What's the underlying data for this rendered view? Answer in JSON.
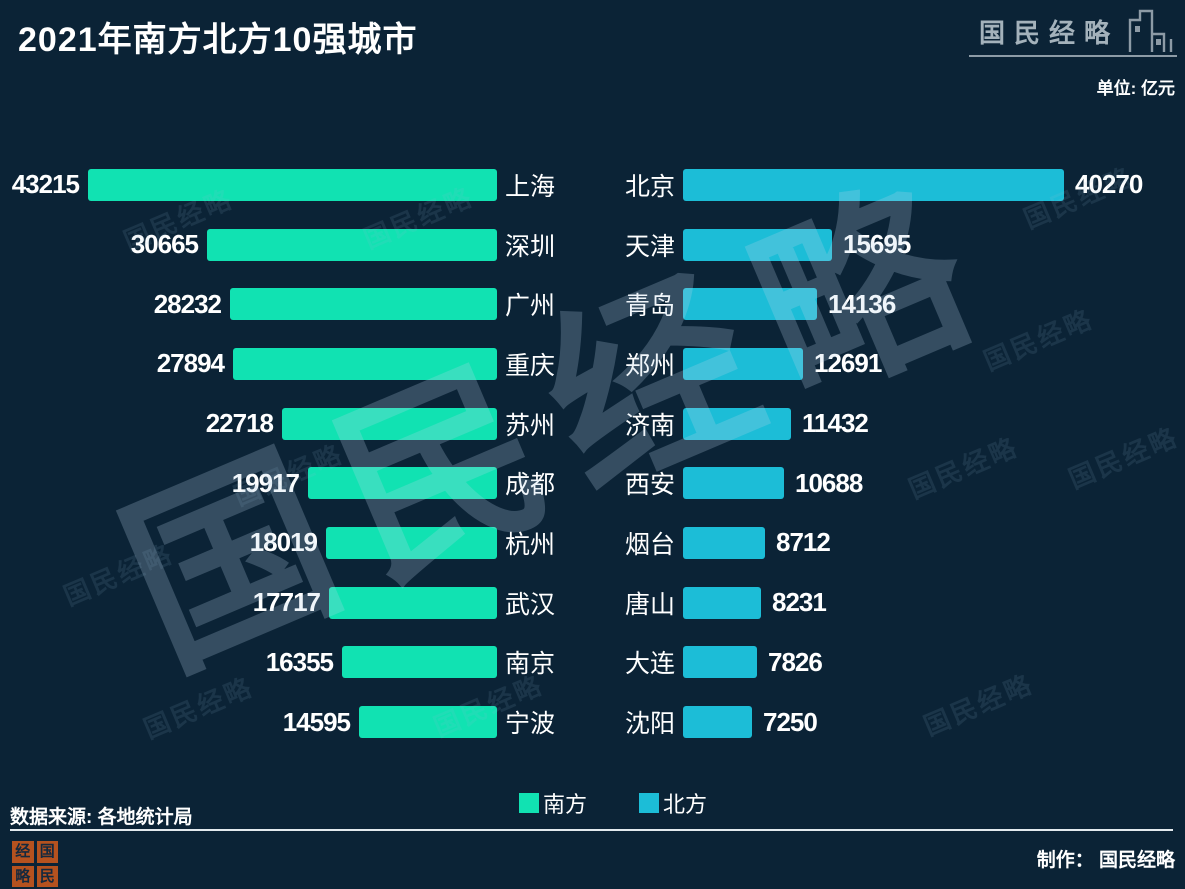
{
  "header": {
    "title": "2021年南方北方10强城市",
    "logo_text": "国民经略",
    "unit_label": "单位: 亿元"
  },
  "chart_data": {
    "type": "bar",
    "orientation": "horizontal",
    "title": "2021年南方北方10强城市",
    "unit": "亿元",
    "value_max": 43215,
    "legend_position": "bottom",
    "series": [
      {
        "name": "南方",
        "color": "#11e2b2",
        "data": [
          {
            "city": "上海",
            "value": 43215
          },
          {
            "city": "深圳",
            "value": 30665
          },
          {
            "city": "广州",
            "value": 28232
          },
          {
            "city": "重庆",
            "value": 27894
          },
          {
            "city": "苏州",
            "value": 22718
          },
          {
            "city": "成都",
            "value": 19917
          },
          {
            "city": "杭州",
            "value": 18019
          },
          {
            "city": "武汉",
            "value": 17717
          },
          {
            "city": "南京",
            "value": 16355
          },
          {
            "city": "宁波",
            "value": 14595
          }
        ]
      },
      {
        "name": "北方",
        "color": "#1cbdd7",
        "data": [
          {
            "city": "北京",
            "value": 40270
          },
          {
            "city": "天津",
            "value": 15695
          },
          {
            "city": "青岛",
            "value": 14136
          },
          {
            "city": "郑州",
            "value": 12691
          },
          {
            "city": "济南",
            "value": 11432
          },
          {
            "city": "西安",
            "value": 10688
          },
          {
            "city": "烟台",
            "value": 8712
          },
          {
            "city": "唐山",
            "value": 8231
          },
          {
            "city": "大连",
            "value": 7826
          },
          {
            "city": "沈阳",
            "value": 7250
          }
        ]
      }
    ]
  },
  "legend": {
    "south_label": "南方",
    "north_label": "北方",
    "south_color": "#11e2b2",
    "north_color": "#1cbdd7"
  },
  "footer": {
    "source": "数据来源: 各地统计局",
    "credit": "制作： 国民经略",
    "seal_chars": [
      "经",
      "国",
      "略",
      "民"
    ]
  },
  "watermark": {
    "large_text": "国民经略",
    "small_text": "国民经略"
  },
  "colors": {
    "background": "#0b2336",
    "text": "#ffffff",
    "logo_gray": "#a4b2bb",
    "seal_red": "#b5521f"
  }
}
